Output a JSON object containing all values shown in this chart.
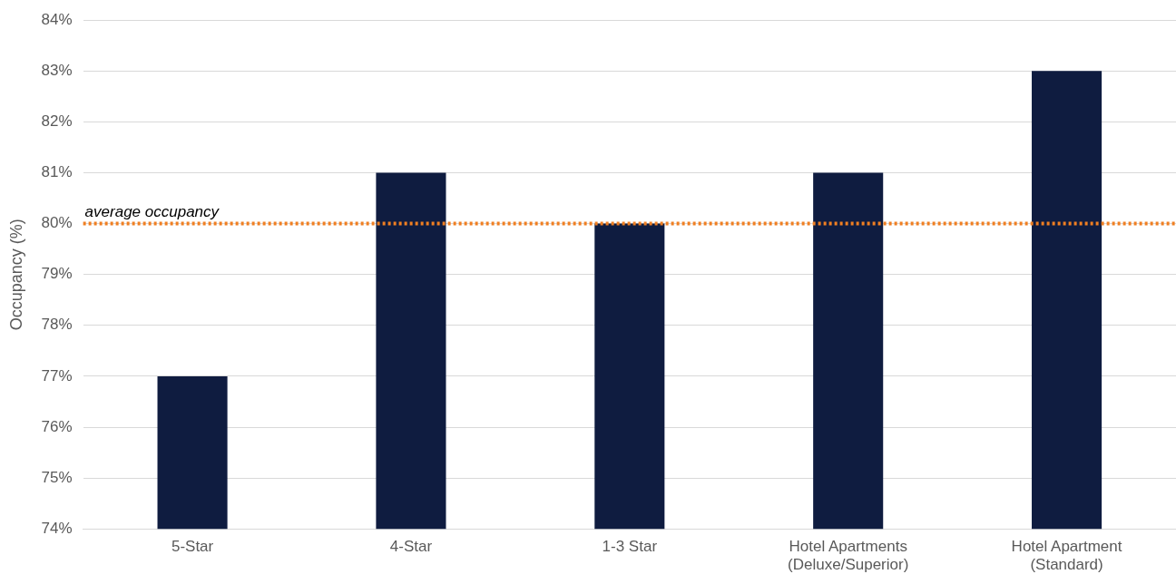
{
  "chart_data": {
    "type": "bar",
    "ylabel": "Occupancy (%)",
    "categories": [
      "5-Star",
      "4-Star",
      "1-3 Star",
      "Hotel Apartments\n(Deluxe/Superior)",
      "Hotel Apartment\n(Standard)"
    ],
    "values": [
      77,
      81,
      80,
      81,
      83
    ],
    "color": "#0f1c40",
    "ylim": [
      74,
      84
    ],
    "yticks": [
      {
        "value": 74,
        "label": "74%"
      },
      {
        "value": 75,
        "label": "75%"
      },
      {
        "value": 76,
        "label": "76%"
      },
      {
        "value": 77,
        "label": "77%"
      },
      {
        "value": 78,
        "label": "78%"
      },
      {
        "value": 79,
        "label": "79%"
      },
      {
        "value": 80,
        "label": "80%"
      },
      {
        "value": 81,
        "label": "81%"
      },
      {
        "value": 82,
        "label": "82%"
      },
      {
        "value": 83,
        "label": "83%"
      },
      {
        "value": 84,
        "label": "84%"
      }
    ],
    "grid": "y",
    "ref_lines": [
      {
        "axis": "y",
        "value": 80,
        "label": "average occupancy",
        "color": "#f07f22",
        "line_style": "dotted"
      }
    ]
  }
}
